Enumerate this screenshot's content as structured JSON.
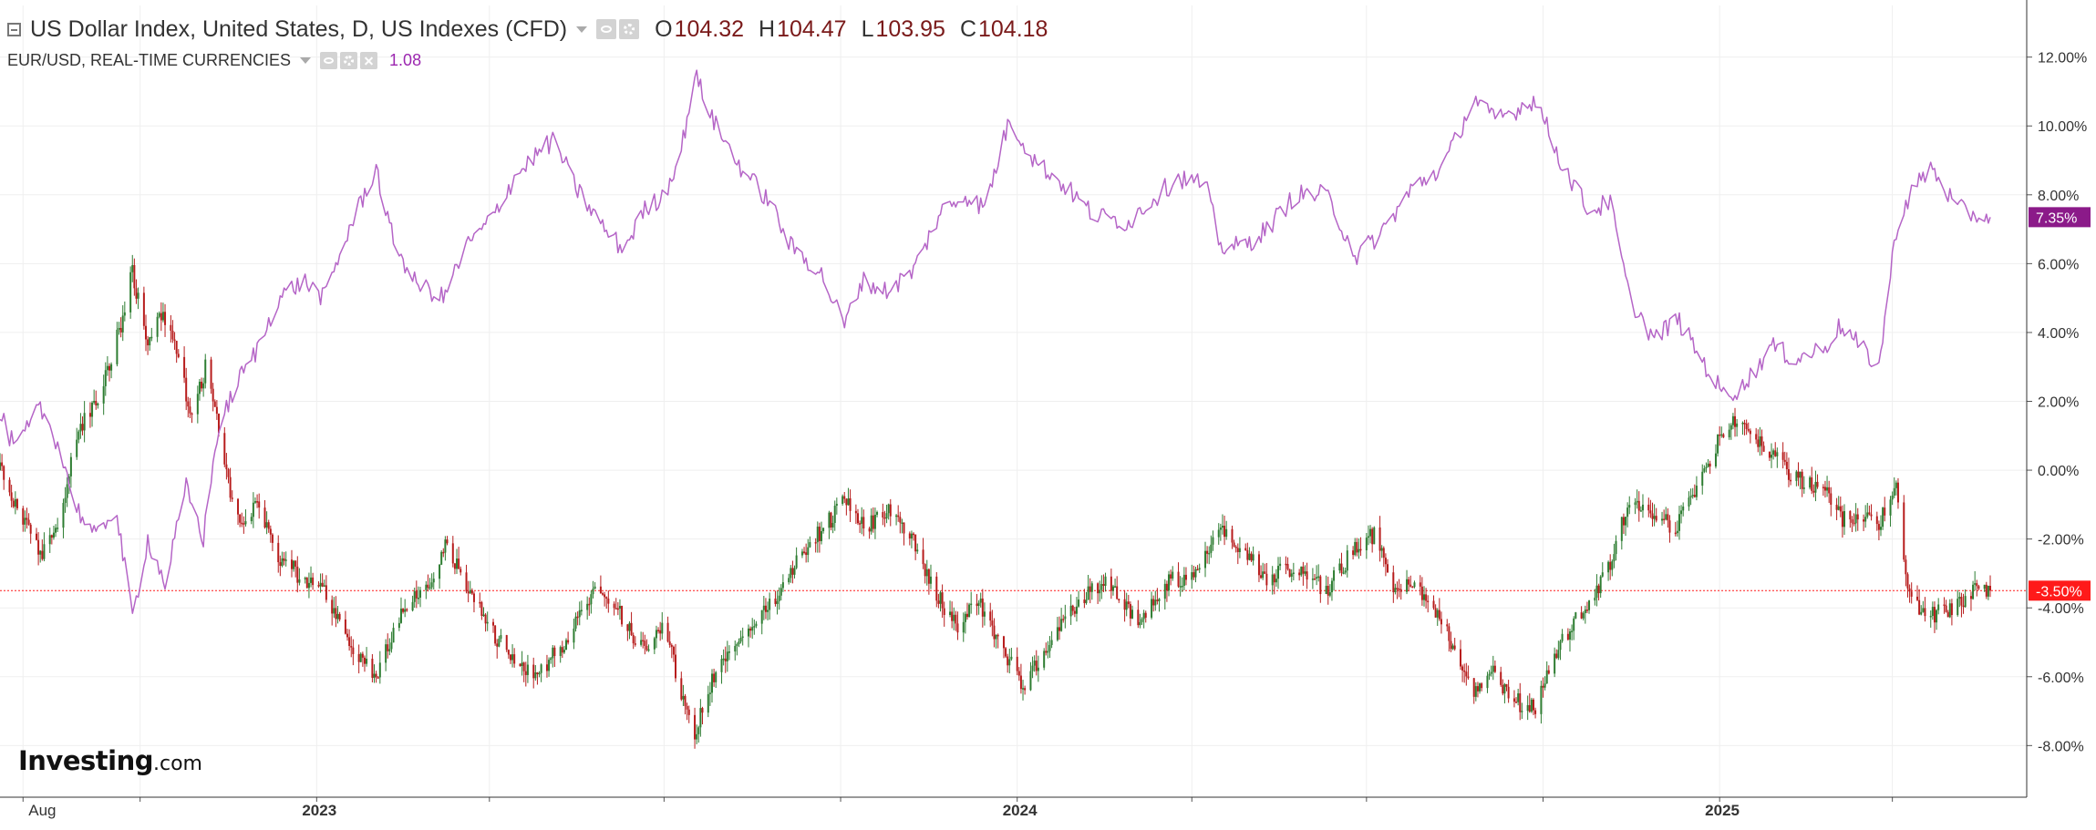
{
  "legend": {
    "main_title": "US Dollar Index, United States, D, US Indexes (CFD)",
    "ohlc": [
      {
        "key": "O",
        "value": "104.32"
      },
      {
        "key": "H",
        "value": "104.47"
      },
      {
        "key": "L",
        "value": "103.95"
      },
      {
        "key": "C",
        "value": "104.18"
      }
    ],
    "secondary_title": "EUR/USD, REAL-TIME CURRENCIES",
    "secondary_value": "1.08"
  },
  "brand": {
    "name": "Investing",
    "suffix": ".com"
  },
  "colors": {
    "up": "#2e7d32",
    "down": "#b71c1c",
    "eurusd_line": "#b565c7",
    "eurusd_tag": "#8b1a89",
    "dxy_tag": "#ff1a1a",
    "grid": "#efefef"
  },
  "chart_data": {
    "type": "line",
    "y_unit": "percent change",
    "ylim": [
      -9.5,
      13.5
    ],
    "y_ticks": [
      "12.00%",
      "10.00%",
      "8.00%",
      "6.00%",
      "4.00%",
      "2.00%",
      "0.00%",
      "-2.00%",
      "-4.00%",
      "-6.00%",
      "-8.00%"
    ],
    "x_labels": [
      {
        "label": "Aug",
        "date": "2022-08-01",
        "bold": false
      },
      {
        "label": "2023",
        "date": "2023-01-01",
        "bold": true
      },
      {
        "label": "2024",
        "date": "2024-01-01",
        "bold": true
      },
      {
        "label": "2025",
        "date": "2025-01-01",
        "bold": true
      }
    ],
    "x_gridlines": [
      "2022-08-01",
      "2022-10-01",
      "2023-01-01",
      "2023-04-01",
      "2023-07-01",
      "2023-10-01",
      "2024-01-01",
      "2024-04-01",
      "2024-07-01",
      "2024-10-01",
      "2025-01-01",
      "2025-04-01"
    ],
    "x_range": [
      "2022-07-20",
      "2025-06-10"
    ],
    "series": [
      {
        "name": "US Dollar Index, United States, D, US Indexes (CFD)",
        "style": "candlestick",
        "points": [
          [
            "2022-07-20",
            0.0
          ],
          [
            "2022-07-28",
            -1.0
          ],
          [
            "2022-08-10",
            -2.5
          ],
          [
            "2022-08-20",
            -1.5
          ],
          [
            "2022-08-28",
            1.0
          ],
          [
            "2022-09-08",
            2.0
          ],
          [
            "2022-09-20",
            4.0
          ],
          [
            "2022-09-27",
            5.8
          ],
          [
            "2022-10-05",
            3.5
          ],
          [
            "2022-10-12",
            4.5
          ],
          [
            "2022-10-20",
            3.5
          ],
          [
            "2022-10-28",
            1.5
          ],
          [
            "2022-11-05",
            3.2
          ],
          [
            "2022-11-12",
            1.0
          ],
          [
            "2022-11-20",
            -1.5
          ],
          [
            "2022-11-30",
            -1.0
          ],
          [
            "2022-12-12",
            -2.5
          ],
          [
            "2022-12-22",
            -3.0
          ],
          [
            "2023-01-03",
            -3.4
          ],
          [
            "2023-01-18",
            -5.0
          ],
          [
            "2023-02-01",
            -5.9
          ],
          [
            "2023-02-15",
            -4.0
          ],
          [
            "2023-03-01",
            -3.5
          ],
          [
            "2023-03-09",
            -2.2
          ],
          [
            "2023-03-20",
            -3.3
          ],
          [
            "2023-04-01",
            -4.5
          ],
          [
            "2023-04-12",
            -5.5
          ],
          [
            "2023-04-26",
            -6.0
          ],
          [
            "2023-05-10",
            -5.0
          ],
          [
            "2023-05-25",
            -3.6
          ],
          [
            "2023-06-05",
            -3.8
          ],
          [
            "2023-06-18",
            -5.2
          ],
          [
            "2023-07-01",
            -4.5
          ],
          [
            "2023-07-10",
            -6.5
          ],
          [
            "2023-07-17",
            -7.6
          ],
          [
            "2023-07-28",
            -5.8
          ],
          [
            "2023-08-10",
            -5.0
          ],
          [
            "2023-08-25",
            -4.0
          ],
          [
            "2023-09-10",
            -2.5
          ],
          [
            "2023-09-25",
            -1.5
          ],
          [
            "2023-10-03",
            -0.9
          ],
          [
            "2023-10-15",
            -1.6
          ],
          [
            "2023-10-28",
            -1.2
          ],
          [
            "2023-11-10",
            -2.3
          ],
          [
            "2023-11-20",
            -3.6
          ],
          [
            "2023-12-01",
            -4.6
          ],
          [
            "2023-12-10",
            -3.6
          ],
          [
            "2023-12-25",
            -5.2
          ],
          [
            "2024-01-03",
            -6.3
          ],
          [
            "2024-01-15",
            -5.4
          ],
          [
            "2024-01-30",
            -4.0
          ],
          [
            "2024-02-15",
            -3.3
          ],
          [
            "2024-03-05",
            -4.3
          ],
          [
            "2024-03-20",
            -3.2
          ],
          [
            "2024-04-05",
            -3.0
          ],
          [
            "2024-04-16",
            -1.6
          ],
          [
            "2024-04-28",
            -2.3
          ],
          [
            "2024-05-10",
            -3.1
          ],
          [
            "2024-05-25",
            -2.8
          ],
          [
            "2024-06-10",
            -3.5
          ],
          [
            "2024-06-26",
            -2.2
          ],
          [
            "2024-07-05",
            -1.9
          ],
          [
            "2024-07-15",
            -3.3
          ],
          [
            "2024-07-30",
            -3.5
          ],
          [
            "2024-08-12",
            -4.8
          ],
          [
            "2024-08-26",
            -6.6
          ],
          [
            "2024-09-05",
            -5.9
          ],
          [
            "2024-09-15",
            -6.7
          ],
          [
            "2024-09-27",
            -6.9
          ],
          [
            "2024-10-10",
            -5.0
          ],
          [
            "2024-10-25",
            -3.8
          ],
          [
            "2024-11-05",
            -2.8
          ],
          [
            "2024-11-15",
            -0.8
          ],
          [
            "2024-11-28",
            -1.5
          ],
          [
            "2024-12-10",
            -1.6
          ],
          [
            "2024-12-25",
            0.0
          ],
          [
            "2025-01-03",
            1.2
          ],
          [
            "2025-01-13",
            1.5
          ],
          [
            "2025-01-28",
            0.4
          ],
          [
            "2025-02-10",
            -0.2
          ],
          [
            "2025-02-25",
            -0.6
          ],
          [
            "2025-03-05",
            -1.4
          ],
          [
            "2025-03-15",
            -1.3
          ],
          [
            "2025-03-25",
            -1.6
          ],
          [
            "2025-04-03",
            -0.5
          ],
          [
            "2025-04-10",
            -3.8
          ],
          [
            "2025-04-21",
            -4.2
          ],
          [
            "2025-05-05",
            -3.9
          ],
          [
            "2025-05-15",
            -3.4
          ],
          [
            "2025-05-22",
            -3.5
          ]
        ]
      },
      {
        "name": "EUR/USD, REAL-TIME CURRENCIES",
        "style": "line",
        "points": [
          [
            "2022-07-20",
            1.6
          ],
          [
            "2022-07-28",
            0.6
          ],
          [
            "2022-08-10",
            1.8
          ],
          [
            "2022-08-20",
            0.7
          ],
          [
            "2022-08-28",
            -1.0
          ],
          [
            "2022-09-08",
            -2.0
          ],
          [
            "2022-09-18",
            -1.0
          ],
          [
            "2022-09-27",
            -4.3
          ],
          [
            "2022-10-05",
            -2.0
          ],
          [
            "2022-10-14",
            -3.3
          ],
          [
            "2022-10-25",
            -0.5
          ],
          [
            "2022-11-03",
            -2.0
          ],
          [
            "2022-11-10",
            1.0
          ],
          [
            "2022-11-20",
            2.5
          ],
          [
            "2022-12-01",
            3.5
          ],
          [
            "2022-12-12",
            5.0
          ],
          [
            "2022-12-25",
            5.5
          ],
          [
            "2023-01-05",
            5.0
          ],
          [
            "2023-01-18",
            7.0
          ],
          [
            "2023-02-01",
            8.8
          ],
          [
            "2023-02-08",
            7.0
          ],
          [
            "2023-02-20",
            5.5
          ],
          [
            "2023-03-08",
            5.0
          ],
          [
            "2023-03-20",
            6.5
          ],
          [
            "2023-04-01",
            7.2
          ],
          [
            "2023-04-14",
            8.5
          ],
          [
            "2023-04-26",
            9.2
          ],
          [
            "2023-05-05",
            9.6
          ],
          [
            "2023-05-15",
            8.3
          ],
          [
            "2023-05-31",
            7.0
          ],
          [
            "2023-06-10",
            6.4
          ],
          [
            "2023-06-20",
            7.5
          ],
          [
            "2023-07-01",
            8.0
          ],
          [
            "2023-07-10",
            9.3
          ],
          [
            "2023-07-17",
            11.5
          ],
          [
            "2023-07-28",
            10.0
          ],
          [
            "2023-08-10",
            8.8
          ],
          [
            "2023-08-25",
            7.8
          ],
          [
            "2023-09-05",
            6.5
          ],
          [
            "2023-09-20",
            5.8
          ],
          [
            "2023-10-03",
            4.2
          ],
          [
            "2023-10-12",
            5.5
          ],
          [
            "2023-10-25",
            5.2
          ],
          [
            "2023-11-08",
            5.8
          ],
          [
            "2023-11-22",
            7.5
          ],
          [
            "2023-12-05",
            8.0
          ],
          [
            "2023-12-15",
            7.6
          ],
          [
            "2023-12-28",
            10.2
          ],
          [
            "2024-01-10",
            9.0
          ],
          [
            "2024-01-25",
            8.3
          ],
          [
            "2024-02-10",
            7.4
          ],
          [
            "2024-02-28",
            7.2
          ],
          [
            "2024-03-10",
            7.8
          ],
          [
            "2024-03-25",
            8.5
          ],
          [
            "2024-04-08",
            8.3
          ],
          [
            "2024-04-16",
            6.5
          ],
          [
            "2024-04-28",
            6.5
          ],
          [
            "2024-05-10",
            7.0
          ],
          [
            "2024-05-25",
            8.0
          ],
          [
            "2024-06-10",
            8.0
          ],
          [
            "2024-06-26",
            6.2
          ],
          [
            "2024-07-10",
            7.0
          ],
          [
            "2024-07-25",
            8.2
          ],
          [
            "2024-08-10",
            8.8
          ],
          [
            "2024-08-26",
            10.8
          ],
          [
            "2024-09-05",
            10.2
          ],
          [
            "2024-09-15",
            10.4
          ],
          [
            "2024-09-27",
            10.8
          ],
          [
            "2024-10-10",
            9.0
          ],
          [
            "2024-10-25",
            7.5
          ],
          [
            "2024-11-05",
            7.8
          ],
          [
            "2024-11-15",
            5.0
          ],
          [
            "2024-11-28",
            3.8
          ],
          [
            "2024-12-10",
            4.4
          ],
          [
            "2024-12-25",
            3.0
          ],
          [
            "2025-01-03",
            2.2
          ],
          [
            "2025-01-13",
            2.4
          ],
          [
            "2025-01-28",
            3.6
          ],
          [
            "2025-02-10",
            3.2
          ],
          [
            "2025-02-25",
            3.6
          ],
          [
            "2025-03-05",
            4.2
          ],
          [
            "2025-03-15",
            3.6
          ],
          [
            "2025-03-25",
            3.0
          ],
          [
            "2025-04-03",
            7.0
          ],
          [
            "2025-04-10",
            8.0
          ],
          [
            "2025-04-21",
            8.8
          ],
          [
            "2025-05-05",
            7.6
          ],
          [
            "2025-05-15",
            7.4
          ],
          [
            "2025-05-22",
            7.35
          ]
        ]
      }
    ],
    "reference_line": {
      "value": -3.5,
      "color": "#ff1a1a"
    },
    "last_value_tags": [
      {
        "label": "7.35%",
        "value": 7.35,
        "color": "#8b1a89"
      },
      {
        "label": "-3.50%",
        "value": -3.5,
        "color": "#ff1a1a"
      }
    ],
    "grid": true
  }
}
